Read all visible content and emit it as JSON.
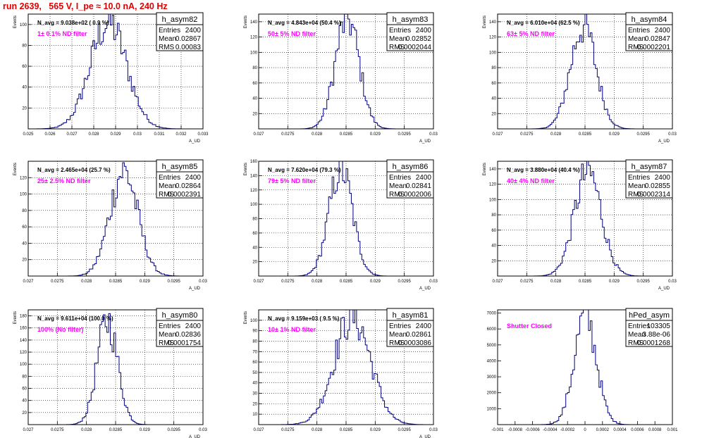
{
  "header": {
    "title": "run 2639,   565 V, I_pe ≈ 10.0 nA, 240 Hz"
  },
  "style": {
    "title_color": "#e00000",
    "annotation_color": "#ff00ff",
    "histogram_color": "#000080",
    "frame_color": "#000000"
  },
  "chart_data": [
    {
      "type": "histogram",
      "hist_name": "h_asym82",
      "stats": [
        [
          "Entries",
          "2400"
        ],
        [
          "Mean",
          "0.02867"
        ],
        [
          "RMS",
          "0.00083"
        ]
      ],
      "navg": "N_avg = 9.038e+02 ( 0.9 %)",
      "filter": "1± 0.1% ND filter",
      "xlabel": "A_UD",
      "ylabel": "Events",
      "xlim": [
        0.025,
        0.033
      ],
      "ylim": [
        0,
        110
      ],
      "xticks": [
        "0.025",
        "0.026",
        "0.027",
        "0.028",
        "0.029",
        "0.03",
        "0.031",
        "0.032",
        "0.033"
      ],
      "yticks": [
        "20",
        "40",
        "60",
        "80",
        "100"
      ],
      "mean": 0.02867,
      "sigma": 0.00083,
      "peak": 102,
      "grid": true
    },
    {
      "type": "histogram",
      "hist_name": "h_asym83",
      "stats": [
        [
          "Entries",
          "2400"
        ],
        [
          "Mean",
          "0.02852"
        ],
        [
          "RMS",
          "0.0002044"
        ]
      ],
      "navg": "N_avg = 4.843e+04 (50.4 %)",
      "filter": "50± 5% ND filter",
      "xlabel": "A_UD",
      "ylabel": "Events",
      "xlim": [
        0.027,
        0.03
      ],
      "ylim": [
        0,
        150
      ],
      "xticks": [
        "0.027",
        "0.0275",
        "0.028",
        "0.0285",
        "0.029",
        "0.0295",
        "0.03"
      ],
      "yticks": [
        "20",
        "40",
        "60",
        "80",
        "100",
        "120",
        "140"
      ],
      "mean": 0.02852,
      "sigma": 0.0002044,
      "peak": 145,
      "grid": true
    },
    {
      "type": "histogram",
      "hist_name": "h_asym84",
      "stats": [
        [
          "Entries",
          "2400"
        ],
        [
          "Mean",
          "0.02847"
        ],
        [
          "RMS",
          "0.0002201"
        ]
      ],
      "navg": "N_avg = 6.010e+04 (62.5 %)",
      "filter": "63± 5% ND filter",
      "xlabel": "A_UD",
      "ylabel": "Events",
      "xlim": [
        0.027,
        0.03
      ],
      "ylim": [
        0,
        150
      ],
      "xticks": [
        "0.027",
        "0.0275",
        "0.028",
        "0.0285",
        "0.029",
        "0.0295",
        "0.03"
      ],
      "yticks": [
        "20",
        "40",
        "60",
        "80",
        "100",
        "120",
        "140"
      ],
      "mean": 0.02847,
      "sigma": 0.0002201,
      "peak": 134,
      "grid": true
    },
    {
      "type": "histogram",
      "hist_name": "h_asym85",
      "stats": [
        [
          "Entries",
          "2400"
        ],
        [
          "Mean",
          "0.02864"
        ],
        [
          "RMS",
          "0.0002391"
        ]
      ],
      "navg": "N_avg = 2.465e+04 (25.7 %)",
      "filter": "25± 2.5% ND filter",
      "xlabel": "A_UD",
      "ylabel": "Events",
      "xlim": [
        0.027,
        0.03
      ],
      "ylim": [
        0,
        140
      ],
      "xticks": [
        "0.027",
        "0.0275",
        "0.028",
        "0.0285",
        "0.029",
        "0.0295",
        "0.03"
      ],
      "yticks": [
        "20",
        "40",
        "60",
        "80",
        "100",
        "120"
      ],
      "mean": 0.02864,
      "sigma": 0.0002391,
      "peak": 128,
      "grid": true
    },
    {
      "type": "histogram",
      "hist_name": "h_asym86",
      "stats": [
        [
          "Entries",
          "2400"
        ],
        [
          "Mean",
          "0.02841"
        ],
        [
          "RMS",
          "0.0002006"
        ]
      ],
      "navg": "N_avg = 7.620e+04 (79.3 %)",
      "filter": "79± 5% ND filter",
      "xlabel": "A_UD",
      "ylabel": "Events",
      "xlim": [
        0.027,
        0.03
      ],
      "ylim": [
        0,
        160
      ],
      "xticks": [
        "0.027",
        "0.0275",
        "0.028",
        "0.0285",
        "0.029",
        "0.0295",
        "0.03"
      ],
      "yticks": [
        "20",
        "40",
        "60",
        "80",
        "100",
        "120",
        "140",
        "160"
      ],
      "mean": 0.02841,
      "sigma": 0.0002006,
      "peak": 150,
      "grid": true
    },
    {
      "type": "histogram",
      "hist_name": "h_asym87",
      "stats": [
        [
          "Entries",
          "2400"
        ],
        [
          "Mean",
          "0.02855"
        ],
        [
          "RMS",
          "0.0002314"
        ]
      ],
      "navg": "N_avg = 3.880e+04 (40.4 %)",
      "filter": "40± 4% ND filter",
      "xlabel": "A_UD",
      "ylabel": "Events",
      "xlim": [
        0.027,
        0.03
      ],
      "ylim": [
        0,
        150
      ],
      "xticks": [
        "0.027",
        "0.0275",
        "0.028",
        "0.0285",
        "0.029",
        "0.0295",
        "0.03"
      ],
      "yticks": [
        "20",
        "40",
        "60",
        "80",
        "100",
        "120",
        "140"
      ],
      "mean": 0.02855,
      "sigma": 0.0002314,
      "peak": 136,
      "grid": true
    },
    {
      "type": "histogram",
      "hist_name": "h_asym80",
      "stats": [
        [
          "Entries",
          "2400"
        ],
        [
          "Mean",
          "0.02836"
        ],
        [
          "RMS",
          "0.0001754"
        ]
      ],
      "navg": "N_avg = 9.611e+04 (100.0 %)",
      "filter": "100% (No filter)",
      "xlabel": "A_UD",
      "ylabel": "Events",
      "xlim": [
        0.027,
        0.03
      ],
      "ylim": [
        0,
        190
      ],
      "xticks": [
        "0.027",
        "0.0275",
        "0.028",
        "0.0285",
        "0.029",
        "0.0295",
        "0.03"
      ],
      "yticks": [
        "20",
        "40",
        "60",
        "80",
        "100",
        "120",
        "140",
        "160",
        "180"
      ],
      "mean": 0.02836,
      "sigma": 0.0001754,
      "peak": 172,
      "grid": true
    },
    {
      "type": "histogram",
      "hist_name": "h_asym81",
      "stats": [
        [
          "Entries",
          "2400"
        ],
        [
          "Mean",
          "0.02861"
        ],
        [
          "RMS",
          "0.0003086"
        ]
      ],
      "navg": "N_avg = 9.159e+03 ( 9.5 %)",
      "filter": "10± 1% ND filter",
      "xlabel": "A_UD",
      "ylabel": "Events",
      "xlim": [
        0.027,
        0.03
      ],
      "ylim": [
        0,
        110
      ],
      "xticks": [
        "0.027",
        "0.0275",
        "0.028",
        "0.0285",
        "0.029",
        "0.0295",
        "0.03"
      ],
      "yticks": [
        "10",
        "20",
        "30",
        "40",
        "50",
        "60",
        "70",
        "80",
        "90",
        "100"
      ],
      "mean": 0.02861,
      "sigma": 0.0003086,
      "peak": 104,
      "grid": true
    },
    {
      "type": "histogram",
      "hist_name": "hPed_asym",
      "stats": [
        [
          "Entries",
          "103305"
        ],
        [
          "Mean",
          "3.88e-06"
        ],
        [
          "RMS",
          "0.0001268"
        ]
      ],
      "navg": "",
      "filter": "Shutter Closed",
      "xlabel": "",
      "ylabel": "",
      "xlim": [
        -0.001,
        0.001
      ],
      "ylim": [
        0,
        7200
      ],
      "xticks": [
        "-0.001",
        "-0.0008",
        "-0.0006",
        "-0.0004",
        "-0.0002",
        "0",
        "0.0002",
        "0.0004",
        "0.0006",
        "0.0008",
        "0.001"
      ],
      "yticks": [
        "1000",
        "2000",
        "3000",
        "4000",
        "5000",
        "6000",
        "7000"
      ],
      "mean": 3.9e-06,
      "sigma": 0.0001268,
      "peak": 6800,
      "grid": false
    }
  ]
}
